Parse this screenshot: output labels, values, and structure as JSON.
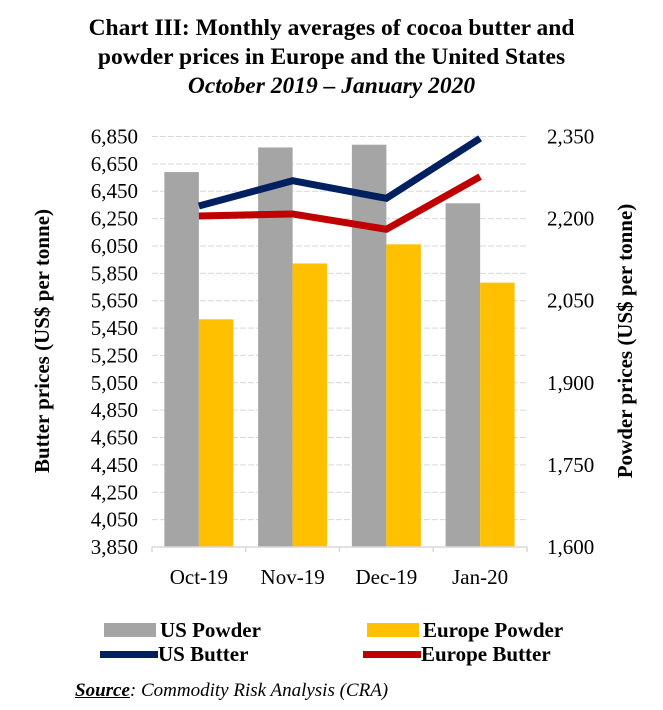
{
  "chart_data": {
    "type": "bar",
    "title": "Chart III: Monthly averages of cocoa butter and powder prices in Europe and the United States",
    "title_lines": [
      "Chart III: Monthly averages of cocoa butter and",
      "powder prices in Europe and the United States"
    ],
    "subtitle": "October 2019 – January 2020",
    "categories": [
      "Oct-19",
      "Nov-19",
      "Dec-19",
      "Jan-20"
    ],
    "series": [
      {
        "name": "US Powder",
        "type": "bar",
        "axis": "right",
        "color": "#A5A5A5",
        "values": [
          2285,
          2330,
          2335,
          2228
        ]
      },
      {
        "name": "Europe Powder",
        "type": "bar",
        "axis": "right",
        "color": "#FFC000",
        "values": [
          2016,
          2118,
          2153,
          2083
        ]
      },
      {
        "name": "US Butter",
        "type": "line",
        "axis": "left",
        "color": "#002060",
        "values": [
          6342,
          6527,
          6398,
          6837
        ]
      },
      {
        "name": "Europe Butter",
        "type": "line",
        "axis": "left",
        "color": "#C00000",
        "values": [
          6269,
          6284,
          6172,
          6556
        ]
      }
    ],
    "left_axis": {
      "label": "Butter prices (US$ per tonne)",
      "range": [
        3850,
        6850
      ],
      "ticks": [
        "3,850",
        "4,050",
        "4,250",
        "4,450",
        "4,650",
        "4,850",
        "5,050",
        "5,250",
        "5,450",
        "5,650",
        "5,850",
        "6,050",
        "6,250",
        "6,450",
        "6,650",
        "6,850"
      ],
      "tick_values": [
        3850,
        4050,
        4250,
        4450,
        4650,
        4850,
        5050,
        5250,
        5450,
        5650,
        5850,
        6050,
        6250,
        6450,
        6650,
        6850
      ]
    },
    "right_axis": {
      "label": "Powder prices (US$ per tonne)",
      "range": [
        1600,
        2350
      ],
      "ticks": [
        "1,600",
        "1,750",
        "1,900",
        "2,050",
        "2,200",
        "2,350"
      ],
      "tick_values": [
        1600,
        1750,
        1900,
        2050,
        2200,
        2350
      ]
    },
    "grid": true,
    "legend_position": "bottom",
    "source_label": "Source",
    "source_text": ": Commodity Risk Analysis (CRA)"
  }
}
